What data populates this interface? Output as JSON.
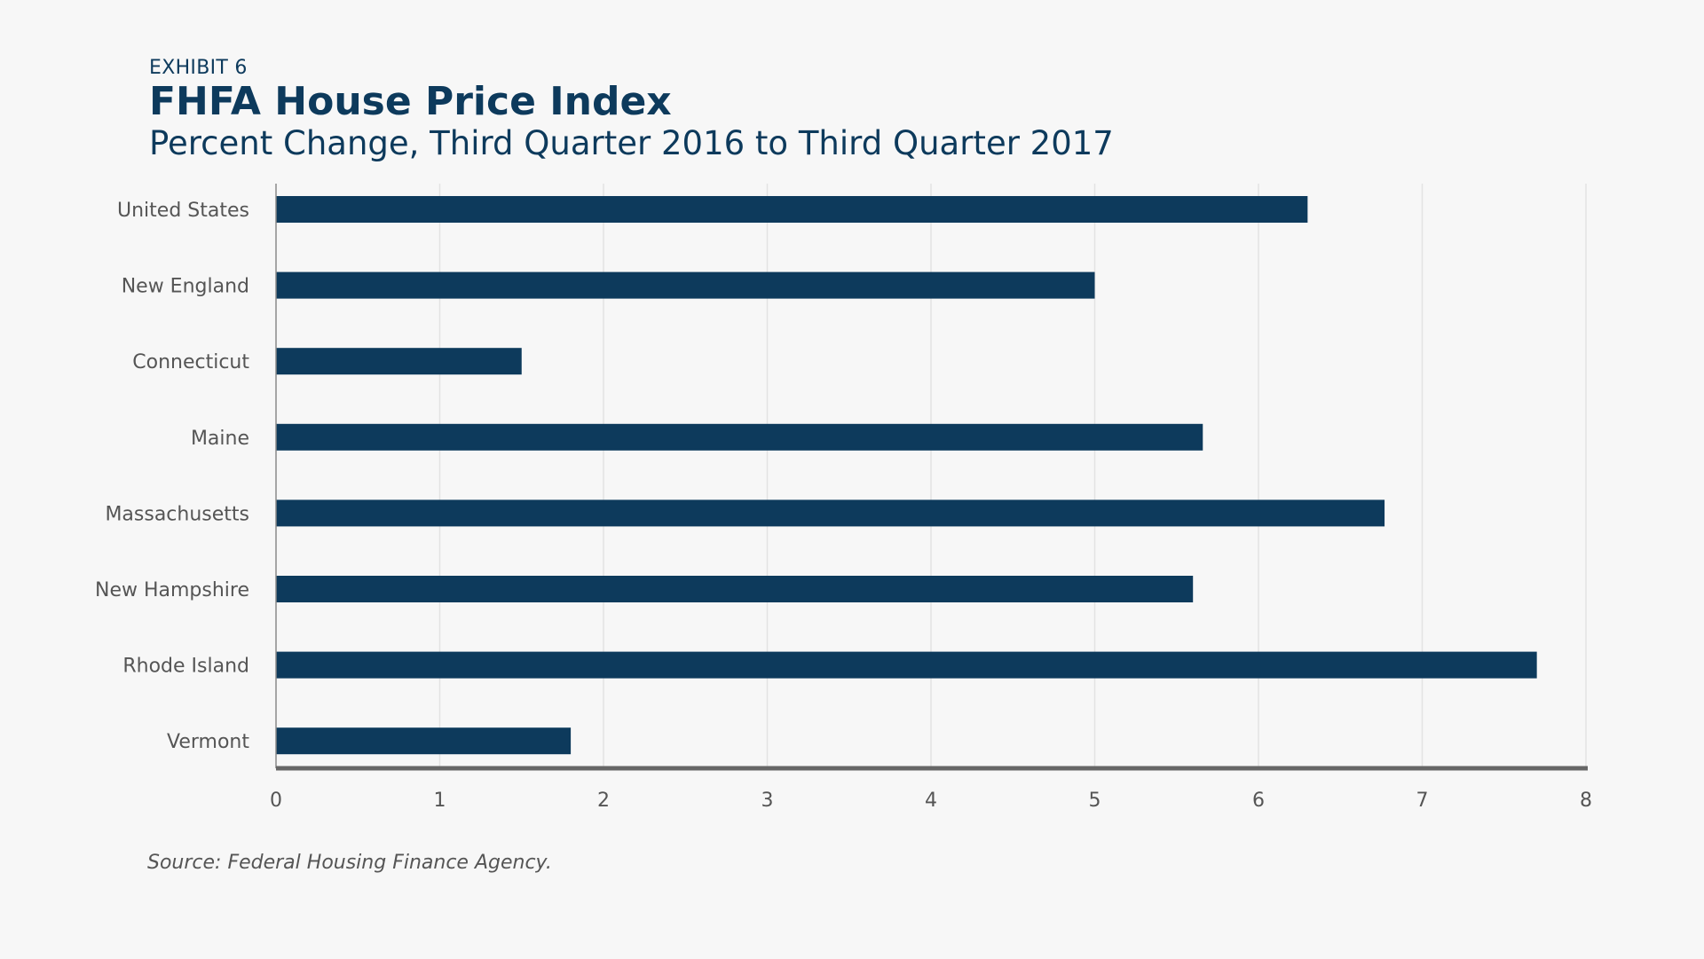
{
  "header": {
    "exhibit": "EXHIBIT 6",
    "title": "FHFA House Price Index",
    "subtitle": "Percent Change, Third Quarter 2016 to Third Quarter 2017"
  },
  "source": "Source: Federal Housing Finance Agency.",
  "colors": {
    "bar": "#0d3a5c",
    "grid": "#e3e3e3",
    "axis": "#666666",
    "label": "#555555",
    "background": "#f7f7f7"
  },
  "chart_data": {
    "type": "bar",
    "orientation": "horizontal",
    "categories": [
      "United States",
      "New England",
      "Connecticut",
      "Maine",
      "Massachusetts",
      "New Hampshire",
      "Rhode Island",
      "Vermont"
    ],
    "values": [
      6.3,
      5.0,
      1.5,
      5.66,
      6.77,
      5.6,
      7.7,
      1.8
    ],
    "xlim": [
      0,
      8
    ],
    "xticks": [
      0,
      1,
      2,
      3,
      4,
      5,
      6,
      7,
      8
    ],
    "grid": true,
    "legend": "none"
  }
}
